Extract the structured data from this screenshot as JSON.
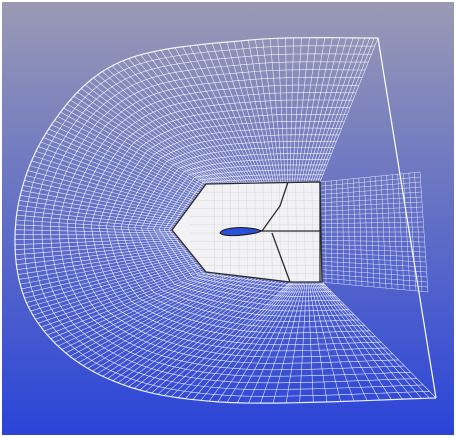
{
  "viewer": {
    "background_top": "#9a9ab4",
    "background_bottom": "#2a44d8",
    "mesh_color": "#ffffff",
    "block_edge_color": "#2b2b2b",
    "airfoil_fill": "#2a4fd8"
  },
  "mesh": {
    "radial_lines": 150,
    "rings": 22,
    "core_columns": 14,
    "core_rows": 12,
    "wake_columns": 18,
    "wake_rows": 24
  }
}
